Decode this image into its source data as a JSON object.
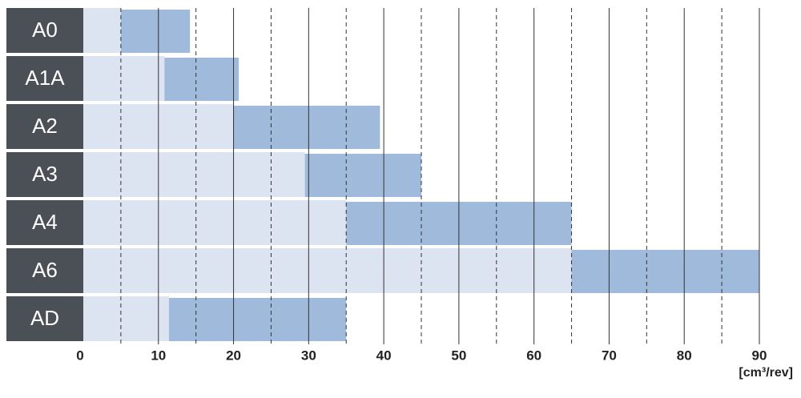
{
  "chart_data": {
    "type": "range-bar",
    "categories": [
      "A0",
      "A1A",
      "A2",
      "A3",
      "A4",
      "A6",
      "AD"
    ],
    "low": [
      5,
      10.8,
      20,
      29.5,
      35,
      65,
      11.4
    ],
    "high": [
      14.2,
      20.7,
      39.5,
      45,
      65,
      90,
      35
    ],
    "color": "#9fbadb",
    "base_color": "#dde4f1",
    "label_color": "#4b5057",
    "xlim": [
      0,
      90
    ],
    "xticks": [
      0,
      10,
      20,
      30,
      40,
      50,
      60,
      70,
      80,
      90
    ],
    "minor_ticks": [
      5,
      15,
      25,
      35,
      45,
      55,
      65,
      75,
      85
    ],
    "x_label": "[cm³/rev]",
    "grid": true
  }
}
